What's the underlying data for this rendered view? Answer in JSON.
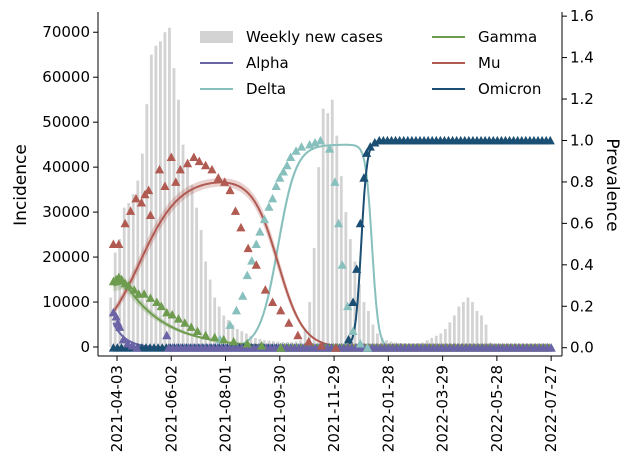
{
  "chart_data": {
    "type": "bar+line+scatter",
    "title": "",
    "xlabel": "",
    "ylabel_left": "Incidence",
    "ylabel_right": "Prevalence",
    "xlim": [
      "2021-03-13",
      "2022-08-08"
    ],
    "ylim_left": [
      -2000,
      74500
    ],
    "ylim_right": [
      -0.04,
      1.62
    ],
    "x_ticks": [
      "2021-04-03",
      "2021-06-02",
      "2021-08-01",
      "2021-09-30",
      "2021-11-29",
      "2022-01-28",
      "2022-03-29",
      "2022-05-28",
      "2022-07-27"
    ],
    "y_ticks_left": [
      "0",
      "10000",
      "20000",
      "30000",
      "40000",
      "50000",
      "60000",
      "70000"
    ],
    "y_ticks_right": [
      "0.0",
      "0.2",
      "0.4",
      "0.6",
      "0.8",
      "1.0",
      "1.2",
      "1.4",
      "1.6"
    ],
    "legend_position": "top",
    "bars": {
      "name": "Weekly new cases",
      "color": "#d3d3d3",
      "start_date": "2021-03-27",
      "week_spacing_days": 5,
      "values": [
        11000,
        21000,
        24000,
        31000,
        32000,
        34000,
        37000,
        43000,
        54000,
        65000,
        67000,
        68000,
        70000,
        71000,
        62000,
        55000,
        45000,
        41000,
        36000,
        31000,
        26000,
        19000,
        15000,
        11000,
        9000,
        7000,
        6000,
        5000,
        4000,
        3500,
        3000,
        2500,
        2000,
        1800,
        1500,
        1400,
        1300,
        1200,
        1100,
        1100,
        1100,
        1200,
        1500,
        4000,
        10000,
        22000,
        40000,
        53000,
        52000,
        55000,
        47000,
        38000,
        30000,
        24000,
        19000,
        14000,
        10000,
        8000,
        5000,
        3000,
        2000,
        1500,
        1200,
        1000,
        900,
        800,
        800,
        800,
        900,
        1000,
        1500,
        2000,
        2500,
        3000,
        4000,
        5500,
        7000,
        9000,
        10000,
        11000,
        10000,
        8000,
        7000,
        5000,
        1000
      ]
    },
    "series": [
      {
        "name": "Alpha",
        "color": "#6a63a5",
        "curve": {
          "type": "decay",
          "date_start": "2021-03-30",
          "y_start": 0.12,
          "date_end": "2021-05-30",
          "y_end": 0.0,
          "rate_per_day": 0.075
        },
        "points": [
          [
            "2021-03-30",
            0.17
          ],
          [
            "2021-04-02",
            0.15
          ],
          [
            "2021-04-04",
            0.12
          ],
          [
            "2021-04-06",
            0.1
          ],
          [
            "2021-04-10",
            0.04
          ],
          [
            "2021-04-15",
            0.02
          ],
          [
            "2021-04-20",
            0.01
          ],
          [
            "2021-04-25",
            0.0
          ],
          [
            "2021-05-28",
            0.06
          ]
        ]
      },
      {
        "name": "Delta",
        "color": "#88c0bd",
        "curve": {
          "type": "rise-fall",
          "rise_mid": "2021-09-28",
          "rise_width_days": 10,
          "fall_mid": "2022-01-10",
          "fall_width_days": 3.5,
          "max": 0.98
        },
        "points": [
          [
            "2021-07-26",
            0.04
          ],
          [
            "2021-08-06",
            0.11
          ],
          [
            "2021-08-13",
            0.18
          ],
          [
            "2021-08-20",
            0.25
          ],
          [
            "2021-08-25",
            0.35
          ],
          [
            "2021-08-30",
            0.42
          ],
          [
            "2021-09-04",
            0.5
          ],
          [
            "2021-09-08",
            0.56
          ],
          [
            "2021-09-13",
            0.62
          ],
          [
            "2021-09-18",
            0.68
          ],
          [
            "2021-09-22",
            0.72
          ],
          [
            "2021-09-26",
            0.78
          ],
          [
            "2021-09-30",
            0.82
          ],
          [
            "2021-10-04",
            0.85
          ],
          [
            "2021-10-08",
            0.88
          ],
          [
            "2021-10-12",
            0.92
          ],
          [
            "2021-10-18",
            0.95
          ],
          [
            "2021-10-24",
            0.97
          ],
          [
            "2021-11-02",
            0.98
          ],
          [
            "2021-11-08",
            0.99
          ],
          [
            "2021-11-14",
            1.0
          ],
          [
            "2021-11-24",
            0.96
          ],
          [
            "2021-11-30",
            0.8
          ],
          [
            "2021-12-04",
            0.6
          ],
          [
            "2021-12-08",
            0.4
          ],
          [
            "2021-12-14",
            0.2
          ],
          [
            "2021-12-20",
            0.08
          ],
          [
            "2021-12-28",
            0.02
          ],
          [
            "2022-01-05",
            0.0
          ]
        ]
      },
      {
        "name": "Gamma",
        "color": "#6e9c4f",
        "curve": {
          "type": "hump-decay",
          "date_start": "2021-03-30",
          "y_start": 0.3,
          "peak_date": "2021-04-12",
          "peak_y": 0.31,
          "decay_rate_per_day": 0.022
        },
        "points": [
          [
            "2021-03-30",
            0.32
          ],
          [
            "2021-04-02",
            0.33
          ],
          [
            "2021-04-05",
            0.34
          ],
          [
            "2021-04-08",
            0.33
          ],
          [
            "2021-04-12",
            0.31
          ],
          [
            "2021-04-16",
            0.3
          ],
          [
            "2021-04-22",
            0.28
          ],
          [
            "2021-04-27",
            0.26
          ],
          [
            "2021-05-03",
            0.26
          ],
          [
            "2021-05-10",
            0.24
          ],
          [
            "2021-05-17",
            0.22
          ],
          [
            "2021-05-22",
            0.2
          ],
          [
            "2021-05-28",
            0.17
          ],
          [
            "2021-06-03",
            0.16
          ],
          [
            "2021-06-10",
            0.14
          ],
          [
            "2021-06-17",
            0.12
          ],
          [
            "2021-06-24",
            0.1
          ],
          [
            "2021-07-01",
            0.08
          ],
          [
            "2021-07-10",
            0.06
          ],
          [
            "2021-07-20",
            0.05
          ],
          [
            "2021-07-30",
            0.04
          ],
          [
            "2021-08-10",
            0.03
          ],
          [
            "2021-08-25",
            0.02
          ],
          [
            "2021-09-10",
            0.01
          ],
          [
            "2021-10-01",
            0.0
          ]
        ]
      },
      {
        "name": "Mu",
        "color": "#b15a52",
        "curve": {
          "type": "rise-fall",
          "rise_mid": "2021-04-28",
          "rise_width_days": 22,
          "fall_mid": "2021-09-28",
          "fall_width_days": 14,
          "max": 0.82
        },
        "points": [
          [
            "2021-03-30",
            0.5
          ],
          [
            "2021-04-05",
            0.5
          ],
          [
            "2021-04-12",
            0.6
          ],
          [
            "2021-04-18",
            0.66
          ],
          [
            "2021-04-24",
            0.72
          ],
          [
            "2021-04-30",
            0.7
          ],
          [
            "2021-05-04",
            0.74
          ],
          [
            "2021-05-08",
            0.76
          ],
          [
            "2021-05-10",
            0.64
          ],
          [
            "2021-05-20",
            0.86
          ],
          [
            "2021-05-26",
            0.78
          ],
          [
            "2021-06-02",
            0.92
          ],
          [
            "2021-06-07",
            0.8
          ],
          [
            "2021-06-12",
            0.86
          ],
          [
            "2021-06-20",
            0.89
          ],
          [
            "2021-06-27",
            0.92
          ],
          [
            "2021-07-03",
            0.9
          ],
          [
            "2021-07-10",
            0.88
          ],
          [
            "2021-07-17",
            0.86
          ],
          [
            "2021-07-24",
            0.82
          ],
          [
            "2021-07-31",
            0.8
          ],
          [
            "2021-08-06",
            0.76
          ],
          [
            "2021-08-12",
            0.66
          ],
          [
            "2021-08-18",
            0.58
          ],
          [
            "2021-08-26",
            0.48
          ],
          [
            "2021-09-04",
            0.4
          ],
          [
            "2021-09-14",
            0.28
          ],
          [
            "2021-09-22",
            0.22
          ],
          [
            "2021-10-01",
            0.18
          ],
          [
            "2021-10-10",
            0.12
          ],
          [
            "2021-10-20",
            0.06
          ],
          [
            "2021-11-01",
            0.03
          ],
          [
            "2021-11-15",
            0.01
          ],
          [
            "2021-12-01",
            0.0
          ]
        ]
      },
      {
        "name": "Omicron",
        "color": "#1b4e73",
        "curve": {
          "type": "logistic",
          "mid": "2021-12-29",
          "width_days": 3.2,
          "max": 1.0
        },
        "points": [
          [
            "2021-12-15",
            0.04
          ],
          [
            "2021-12-20",
            0.22
          ],
          [
            "2021-12-24",
            0.38
          ],
          [
            "2021-12-28",
            0.6
          ],
          [
            "2022-01-01",
            0.82
          ],
          [
            "2022-01-04",
            0.94
          ],
          [
            "2022-01-08",
            0.97
          ],
          [
            "2022-01-13",
            0.99
          ]
        ],
        "plateau_points": {
          "date_start": "2022-01-18",
          "date_end": "2022-07-27",
          "spacing_days": 4.5,
          "y": 1.0
        }
      }
    ],
    "flat_markers": {
      "description_in_image": "",
      "points_at_zero": [
        {
          "series": "Omicron",
          "date_start": "2021-03-30",
          "date_end": "2021-12-12",
          "spacing_days": 4.5
        },
        {
          "series": "Mu",
          "date_start": "2021-12-15",
          "date_end": "2022-07-27",
          "spacing_days": 4.5
        },
        {
          "series": "Delta",
          "date_start": "2022-01-10",
          "date_end": "2022-07-27",
          "spacing_days": 4.5
        },
        {
          "series": "Gamma",
          "date_start": "2021-10-01",
          "date_end": "2022-07-27",
          "spacing_days": 4.5
        },
        {
          "series": "Alpha",
          "date_start": "2021-05-30",
          "date_end": "2022-07-27",
          "spacing_days": 4.5
        }
      ]
    },
    "legend": [
      {
        "label": "Weekly new cases",
        "kind": "bar",
        "color": "#d3d3d3"
      },
      {
        "label": "Alpha",
        "kind": "line",
        "color": "#6a63a5"
      },
      {
        "label": "Delta",
        "kind": "line",
        "color": "#88c0bd"
      },
      {
        "label": "Gamma",
        "kind": "line",
        "color": "#6e9c4f"
      },
      {
        "label": "Mu",
        "kind": "line",
        "color": "#b15a52"
      },
      {
        "label": "Omicron",
        "kind": "line",
        "color": "#1b4e73"
      }
    ]
  }
}
